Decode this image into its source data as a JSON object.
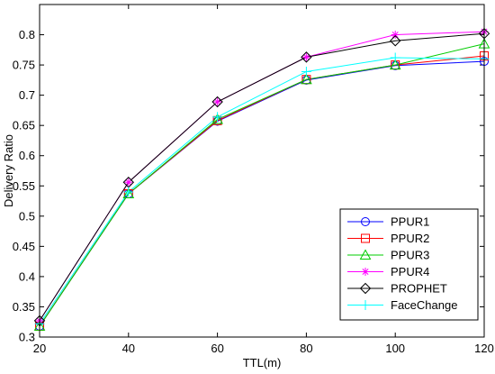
{
  "chart_data": {
    "type": "line",
    "title": "",
    "xlabel": "TTL(m)",
    "ylabel": "Delivery Ratio",
    "x": [
      20,
      40,
      60,
      80,
      100,
      120
    ],
    "xlim": [
      20,
      120
    ],
    "ylim": [
      0.3,
      0.85
    ],
    "xticks": [
      20,
      40,
      60,
      80,
      100,
      120
    ],
    "yticks": [
      0.3,
      0.35,
      0.4,
      0.45,
      0.5,
      0.55,
      0.6,
      0.65,
      0.7,
      0.75,
      0.8
    ],
    "grid": false,
    "legend_position": "bottom-right",
    "series": [
      {
        "name": "PPUR1",
        "color": "#0000ff",
        "marker": "circle",
        "values": [
          0.318,
          0.537,
          0.657,
          0.725,
          0.749,
          0.756
        ]
      },
      {
        "name": "PPUR2",
        "color": "#ff0000",
        "marker": "square",
        "values": [
          0.318,
          0.537,
          0.658,
          0.726,
          0.75,
          0.765
        ]
      },
      {
        "name": "PPUR3",
        "color": "#00cc00",
        "marker": "triangle",
        "values": [
          0.318,
          0.537,
          0.66,
          0.726,
          0.75,
          0.785
        ]
      },
      {
        "name": "PPUR4",
        "color": "#ff00ff",
        "marker": "star",
        "values": [
          0.327,
          0.556,
          0.689,
          0.763,
          0.8,
          0.805
        ]
      },
      {
        "name": "PROPHET",
        "color": "#000000",
        "marker": "diamond",
        "values": [
          0.327,
          0.556,
          0.689,
          0.763,
          0.79,
          0.802
        ]
      },
      {
        "name": "FaceChange",
        "color": "#00ffff",
        "marker": "plus",
        "values": [
          0.322,
          0.54,
          0.664,
          0.739,
          0.762,
          0.76
        ]
      }
    ]
  }
}
